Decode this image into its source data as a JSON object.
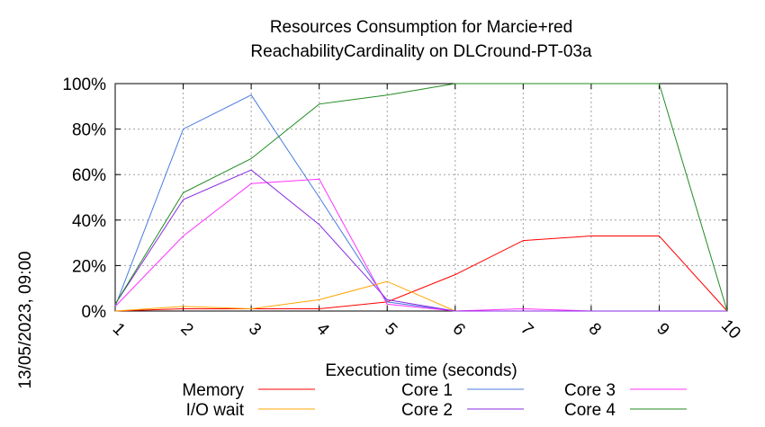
{
  "chart_data": {
    "type": "line",
    "title_line1": "Resources Consumption for Marcie+red",
    "title_line2": "ReachabilityCardinality on DLCround-PT-03a",
    "xlabel": "Execution time (seconds)",
    "side_label": "13/05/2023, 09:00",
    "x": [
      1,
      2,
      3,
      4,
      5,
      6,
      7,
      8,
      9,
      10
    ],
    "xlim": [
      1,
      10
    ],
    "ylim": [
      0,
      100
    ],
    "y_ticks": [
      "0%",
      "20%",
      "40%",
      "60%",
      "80%",
      "100%"
    ],
    "x_ticks": [
      "1",
      "2",
      "3",
      "4",
      "5",
      "6",
      "7",
      "8",
      "9",
      "10"
    ],
    "grid": true,
    "legend_position": "bottom",
    "series": [
      {
        "name": "Memory",
        "color": "#ff0000",
        "values": [
          0,
          1,
          1,
          1,
          4,
          16,
          31,
          33,
          33,
          0
        ]
      },
      {
        "name": "Core 1",
        "color": "#4a7be0",
        "values": [
          2,
          80,
          95,
          50,
          4,
          0,
          0,
          0,
          0,
          0
        ]
      },
      {
        "name": "Core 3",
        "color": "#ff33ff",
        "values": [
          2,
          33,
          56,
          58,
          3,
          0,
          1,
          0,
          0,
          0
        ]
      },
      {
        "name": "I/O wait",
        "color": "#ffa500",
        "values": [
          0,
          2,
          1,
          5,
          13,
          0,
          0,
          0,
          0,
          0
        ]
      },
      {
        "name": "Core 2",
        "color": "#8a2be2",
        "values": [
          3,
          49,
          62,
          38,
          5,
          0,
          0,
          0,
          0,
          0
        ]
      },
      {
        "name": "Core 4",
        "color": "#228b22",
        "values": [
          3,
          52,
          67,
          91,
          95,
          100,
          100,
          100,
          100,
          0
        ]
      }
    ]
  }
}
